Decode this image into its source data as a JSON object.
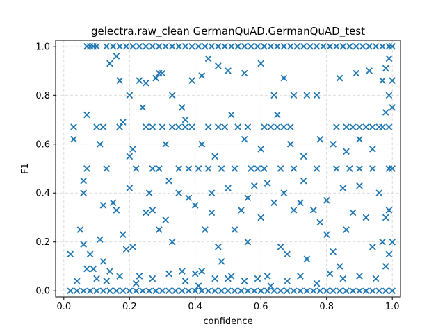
{
  "chart_data": {
    "type": "scatter",
    "title": "gelectra.raw_clean GermanQuAD.GermanQuAD_test",
    "xlabel": "confidence",
    "ylabel": "F1",
    "xlim": [
      -0.025,
      1.025
    ],
    "ylim": [
      -0.025,
      1.025
    ],
    "xticks": [
      "0.0",
      "0.2",
      "0.4",
      "0.6",
      "0.8",
      "1.0"
    ],
    "yticks": [
      "0.0",
      "0.2",
      "0.4",
      "0.6",
      "0.8",
      "1.0"
    ],
    "grid": true,
    "marker": "x",
    "color": "#1f77b4",
    "series": [
      {
        "name": "",
        "points": [
          [
            0.07,
            1.0
          ],
          [
            0.08,
            1.0
          ],
          [
            0.09,
            1.0
          ],
          [
            0.1,
            1.0
          ],
          [
            0.13,
            1.0
          ],
          [
            0.15,
            1.0
          ],
          [
            0.17,
            1.0
          ],
          [
            0.19,
            1.0
          ],
          [
            0.21,
            1.0
          ],
          [
            0.23,
            1.0
          ],
          [
            0.25,
            1.0
          ],
          [
            0.27,
            1.0
          ],
          [
            0.29,
            1.0
          ],
          [
            0.31,
            1.0
          ],
          [
            0.33,
            1.0
          ],
          [
            0.35,
            1.0
          ],
          [
            0.37,
            1.0
          ],
          [
            0.39,
            1.0
          ],
          [
            0.41,
            1.0
          ],
          [
            0.43,
            1.0
          ],
          [
            0.45,
            1.0
          ],
          [
            0.47,
            1.0
          ],
          [
            0.49,
            1.0
          ],
          [
            0.51,
            1.0
          ],
          [
            0.53,
            1.0
          ],
          [
            0.55,
            1.0
          ],
          [
            0.57,
            1.0
          ],
          [
            0.59,
            1.0
          ],
          [
            0.61,
            1.0
          ],
          [
            0.63,
            1.0
          ],
          [
            0.65,
            1.0
          ],
          [
            0.67,
            1.0
          ],
          [
            0.69,
            1.0
          ],
          [
            0.71,
            1.0
          ],
          [
            0.73,
            1.0
          ],
          [
            0.75,
            1.0
          ],
          [
            0.77,
            1.0
          ],
          [
            0.79,
            1.0
          ],
          [
            0.81,
            1.0
          ],
          [
            0.83,
            1.0
          ],
          [
            0.85,
            1.0
          ],
          [
            0.87,
            1.0
          ],
          [
            0.89,
            1.0
          ],
          [
            0.91,
            1.0
          ],
          [
            0.93,
            1.0
          ],
          [
            0.95,
            1.0
          ],
          [
            0.97,
            1.0
          ],
          [
            0.99,
            1.0
          ],
          [
            1.0,
            1.0
          ],
          [
            0.02,
            0.0
          ],
          [
            0.04,
            0.0
          ],
          [
            0.06,
            0.0
          ],
          [
            0.08,
            0.0
          ],
          [
            0.1,
            0.0
          ],
          [
            0.12,
            0.0
          ],
          [
            0.14,
            0.0
          ],
          [
            0.16,
            0.0
          ],
          [
            0.18,
            0.0
          ],
          [
            0.2,
            0.0
          ],
          [
            0.22,
            0.0
          ],
          [
            0.24,
            0.0
          ],
          [
            0.26,
            0.0
          ],
          [
            0.28,
            0.0
          ],
          [
            0.3,
            0.0
          ],
          [
            0.32,
            0.0
          ],
          [
            0.34,
            0.0
          ],
          [
            0.36,
            0.0
          ],
          [
            0.38,
            0.0
          ],
          [
            0.4,
            0.0
          ],
          [
            0.42,
            0.0
          ],
          [
            0.44,
            0.0
          ],
          [
            0.46,
            0.0
          ],
          [
            0.48,
            0.0
          ],
          [
            0.5,
            0.0
          ],
          [
            0.52,
            0.0
          ],
          [
            0.54,
            0.0
          ],
          [
            0.56,
            0.0
          ],
          [
            0.58,
            0.0
          ],
          [
            0.6,
            0.0
          ],
          [
            0.62,
            0.0
          ],
          [
            0.64,
            0.0
          ],
          [
            0.66,
            0.0
          ],
          [
            0.68,
            0.0
          ],
          [
            0.7,
            0.0
          ],
          [
            0.72,
            0.0
          ],
          [
            0.74,
            0.0
          ],
          [
            0.76,
            0.0
          ],
          [
            0.78,
            0.0
          ],
          [
            0.8,
            0.0
          ],
          [
            0.82,
            0.0
          ],
          [
            0.84,
            0.0
          ],
          [
            0.86,
            0.0
          ],
          [
            0.88,
            0.0
          ],
          [
            0.9,
            0.0
          ],
          [
            0.92,
            0.0
          ],
          [
            0.94,
            0.0
          ],
          [
            0.96,
            0.0
          ],
          [
            0.98,
            0.0
          ],
          [
            1.0,
            0.0
          ],
          [
            0.99,
            0.95
          ],
          [
            0.98,
            0.91
          ],
          [
            0.97,
            0.86
          ],
          [
            1.0,
            0.86
          ],
          [
            0.99,
            0.8
          ],
          [
            0.98,
            0.73
          ],
          [
            1.0,
            0.75
          ],
          [
            0.99,
            0.67
          ],
          [
            0.97,
            0.67
          ],
          [
            1.0,
            0.5
          ],
          [
            0.99,
            0.33
          ],
          [
            1.0,
            0.2
          ],
          [
            0.99,
            0.15
          ],
          [
            0.98,
            0.1
          ],
          [
            0.25,
            0.67
          ],
          [
            0.27,
            0.67
          ],
          [
            0.3,
            0.67
          ],
          [
            0.33,
            0.67
          ],
          [
            0.35,
            0.67
          ],
          [
            0.37,
            0.67
          ],
          [
            0.39,
            0.67
          ],
          [
            0.44,
            0.67
          ],
          [
            0.47,
            0.67
          ],
          [
            0.49,
            0.67
          ],
          [
            0.53,
            0.67
          ],
          [
            0.56,
            0.67
          ],
          [
            0.61,
            0.67
          ],
          [
            0.63,
            0.67
          ],
          [
            0.65,
            0.67
          ],
          [
            0.67,
            0.67
          ],
          [
            0.69,
            0.67
          ],
          [
            0.83,
            0.67
          ],
          [
            0.86,
            0.67
          ],
          [
            0.88,
            0.67
          ],
          [
            0.9,
            0.67
          ],
          [
            0.92,
            0.67
          ],
          [
            0.94,
            0.67
          ],
          [
            0.96,
            0.67
          ],
          [
            0.27,
            0.5
          ],
          [
            0.29,
            0.5
          ],
          [
            0.35,
            0.5
          ],
          [
            0.38,
            0.5
          ],
          [
            0.41,
            0.5
          ],
          [
            0.44,
            0.5
          ],
          [
            0.48,
            0.5
          ],
          [
            0.52,
            0.5
          ],
          [
            0.57,
            0.5
          ],
          [
            0.59,
            0.5
          ],
          [
            0.61,
            0.5
          ],
          [
            0.66,
            0.5
          ],
          [
            0.7,
            0.5
          ],
          [
            0.77,
            0.5
          ],
          [
            0.83,
            0.5
          ],
          [
            0.87,
            0.5
          ],
          [
            0.9,
            0.5
          ],
          [
            0.94,
            0.5
          ],
          [
            0.99,
            0.5
          ],
          [
            0.03,
            0.67
          ],
          [
            0.03,
            0.62
          ],
          [
            0.07,
            0.72
          ],
          [
            0.07,
            0.5
          ],
          [
            0.06,
            0.45
          ],
          [
            0.06,
            0.4
          ],
          [
            0.1,
            0.67
          ],
          [
            0.11,
            0.6
          ],
          [
            0.12,
            0.67
          ],
          [
            0.13,
            0.5
          ],
          [
            0.17,
            0.67
          ],
          [
            0.18,
            0.69
          ],
          [
            0.2,
            0.55
          ],
          [
            0.21,
            0.58
          ],
          [
            0.22,
            0.5
          ],
          [
            0.14,
            0.93
          ],
          [
            0.16,
            0.96
          ],
          [
            0.17,
            0.86
          ],
          [
            0.2,
            0.8
          ],
          [
            0.23,
            0.86
          ],
          [
            0.25,
            0.85
          ],
          [
            0.28,
            0.87
          ],
          [
            0.29,
            0.89
          ],
          [
            0.3,
            0.89
          ],
          [
            0.33,
            0.8
          ],
          [
            0.36,
            0.75
          ],
          [
            0.39,
            0.86
          ],
          [
            0.42,
            0.88
          ],
          [
            0.44,
            0.95
          ],
          [
            0.47,
            0.92
          ],
          [
            0.5,
            0.9
          ],
          [
            0.55,
            0.89
          ],
          [
            0.6,
            0.93
          ],
          [
            0.64,
            0.8
          ],
          [
            0.67,
            0.87
          ],
          [
            0.7,
            0.8
          ],
          [
            0.74,
            0.8
          ],
          [
            0.77,
            0.8
          ],
          [
            0.84,
            0.87
          ],
          [
            0.89,
            0.89
          ],
          [
            0.93,
            0.9
          ],
          [
            0.05,
            0.25
          ],
          [
            0.06,
            0.19
          ],
          [
            0.08,
            0.15
          ],
          [
            0.09,
            0.09
          ],
          [
            0.11,
            0.21
          ],
          [
            0.12,
            0.12
          ],
          [
            0.14,
            0.08
          ],
          [
            0.15,
            0.36
          ],
          [
            0.16,
            0.33
          ],
          [
            0.18,
            0.23
          ],
          [
            0.19,
            0.17
          ],
          [
            0.21,
            0.18
          ],
          [
            0.23,
            0.06
          ],
          [
            0.25,
            0.32
          ],
          [
            0.27,
            0.33
          ],
          [
            0.29,
            0.25
          ],
          [
            0.31,
            0.29
          ],
          [
            0.33,
            0.2
          ],
          [
            0.35,
            0.4
          ],
          [
            0.36,
            0.08
          ],
          [
            0.38,
            0.38
          ],
          [
            0.4,
            0.07
          ],
          [
            0.42,
            0.08
          ],
          [
            0.43,
            0.25
          ],
          [
            0.45,
            0.32
          ],
          [
            0.47,
            0.18
          ],
          [
            0.48,
            0.12
          ],
          [
            0.5,
            0.05
          ],
          [
            0.52,
            0.25
          ],
          [
            0.54,
            0.33
          ],
          [
            0.56,
            0.2
          ],
          [
            0.58,
            0.43
          ],
          [
            0.6,
            0.3
          ],
          [
            0.62,
            0.06
          ],
          [
            0.64,
            0.36
          ],
          [
            0.66,
            0.18
          ],
          [
            0.68,
            0.15
          ],
          [
            0.7,
            0.33
          ],
          [
            0.72,
            0.36
          ],
          [
            0.74,
            0.13
          ],
          [
            0.76,
            0.33
          ],
          [
            0.78,
            0.28
          ],
          [
            0.8,
            0.23
          ],
          [
            0.82,
            0.16
          ],
          [
            0.84,
            0.1
          ],
          [
            0.86,
            0.25
          ],
          [
            0.88,
            0.32
          ],
          [
            0.9,
            0.43
          ],
          [
            0.92,
            0.3
          ],
          [
            0.94,
            0.18
          ],
          [
            0.96,
            0.4
          ],
          [
            0.97,
            0.2
          ],
          [
            0.98,
            0.3
          ],
          [
            0.02,
            0.15
          ],
          [
            0.04,
            0.04
          ],
          [
            0.07,
            0.09
          ],
          [
            0.1,
            0.05
          ],
          [
            0.13,
            0.04
          ],
          [
            0.17,
            0.06
          ],
          [
            0.22,
            0.03
          ],
          [
            0.27,
            0.05
          ],
          [
            0.32,
            0.07
          ],
          [
            0.37,
            0.04
          ],
          [
            0.41,
            0.02
          ],
          [
            0.46,
            0.05
          ],
          [
            0.51,
            0.06
          ],
          [
            0.55,
            0.04
          ],
          [
            0.59,
            0.05
          ],
          [
            0.63,
            0.02
          ],
          [
            0.68,
            0.04
          ],
          [
            0.72,
            0.06
          ],
          [
            0.77,
            0.03
          ],
          [
            0.81,
            0.07
          ],
          [
            0.85,
            0.05
          ],
          [
            0.9,
            0.06
          ],
          [
            0.95,
            0.05
          ],
          [
            0.24,
            0.75
          ],
          [
            0.31,
            0.6
          ],
          [
            0.37,
            0.7
          ],
          [
            0.42,
            0.6
          ],
          [
            0.46,
            0.55
          ],
          [
            0.51,
            0.72
          ],
          [
            0.55,
            0.62
          ],
          [
            0.6,
            0.58
          ],
          [
            0.65,
            0.72
          ],
          [
            0.69,
            0.6
          ],
          [
            0.73,
            0.55
          ],
          [
            0.78,
            0.62
          ],
          [
            0.82,
            0.6
          ],
          [
            0.86,
            0.57
          ],
          [
            0.9,
            0.62
          ],
          [
            0.94,
            0.58
          ],
          [
            0.12,
            0.35
          ],
          [
            0.2,
            0.42
          ],
          [
            0.26,
            0.4
          ],
          [
            0.32,
            0.45
          ],
          [
            0.4,
            0.35
          ],
          [
            0.45,
            0.4
          ],
          [
            0.5,
            0.42
          ],
          [
            0.56,
            0.38
          ],
          [
            0.62,
            0.44
          ],
          [
            0.67,
            0.4
          ],
          [
            0.73,
            0.45
          ],
          [
            0.8,
            0.37
          ],
          [
            0.85,
            0.42
          ]
        ]
      }
    ]
  }
}
